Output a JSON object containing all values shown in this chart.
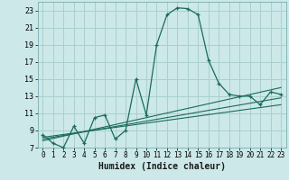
{
  "title": "",
  "xlabel": "Humidex (Indice chaleur)",
  "ylabel": "",
  "bg_color": "#cce8e8",
  "grid_color": "#aacfcf",
  "line_color": "#1a6b5a",
  "xlim": [
    -0.5,
    23.5
  ],
  "ylim": [
    7,
    24
  ],
  "xticks": [
    0,
    1,
    2,
    3,
    4,
    5,
    6,
    7,
    8,
    9,
    10,
    11,
    12,
    13,
    14,
    15,
    16,
    17,
    18,
    19,
    20,
    21,
    22,
    23
  ],
  "yticks": [
    7,
    9,
    11,
    13,
    15,
    17,
    19,
    21,
    23
  ],
  "main_x": [
    0,
    1,
    2,
    3,
    4,
    5,
    6,
    7,
    8,
    9,
    10,
    11,
    12,
    13,
    14,
    15,
    16,
    17,
    18,
    19,
    20,
    21,
    22,
    23
  ],
  "main_y": [
    8.5,
    7.5,
    7.0,
    9.5,
    7.5,
    10.5,
    10.8,
    8.0,
    9.0,
    15.0,
    10.8,
    19.0,
    22.5,
    23.3,
    23.2,
    22.5,
    17.2,
    14.5,
    13.2,
    13.0,
    13.0,
    12.0,
    13.5,
    13.2
  ],
  "ref_lines": [
    {
      "x": [
        0,
        23
      ],
      "y": [
        7.8,
        14.0
      ]
    },
    {
      "x": [
        0,
        23
      ],
      "y": [
        8.0,
        12.8
      ]
    },
    {
      "x": [
        0,
        23
      ],
      "y": [
        8.2,
        12.0
      ]
    }
  ],
  "tick_fontsize": 6.0,
  "xlabel_fontsize": 7.0
}
